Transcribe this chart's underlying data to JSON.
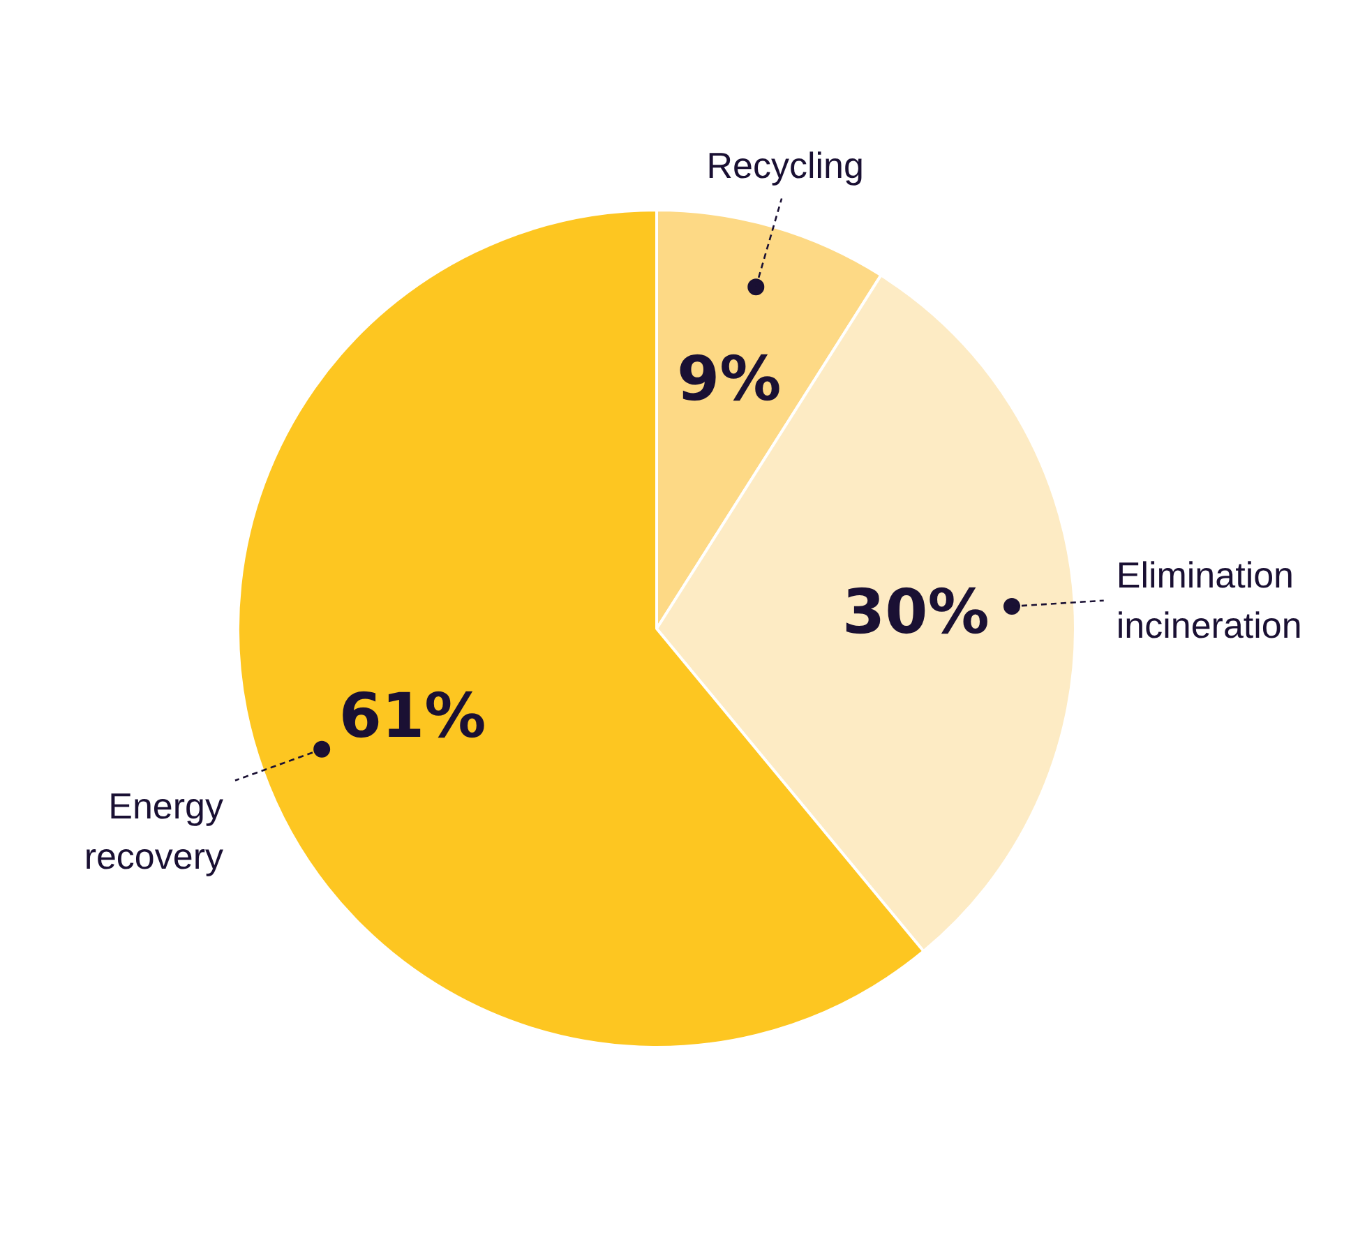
{
  "chart_data": {
    "type": "pie",
    "categories": [
      "Recycling",
      "Elimination incineration",
      "Energy recovery"
    ],
    "values": [
      9,
      30,
      61
    ],
    "colors": [
      "#fdd985",
      "#fdebc4",
      "#fdc621"
    ],
    "value_labels": [
      "9%",
      "30%",
      "61%"
    ]
  }
}
